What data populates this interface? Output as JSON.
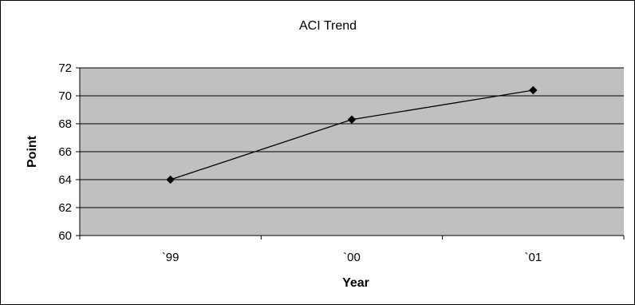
{
  "chart_data": {
    "type": "line",
    "title": "ACI Trend",
    "xlabel": "Year",
    "ylabel": "Point",
    "categories": [
      "`99",
      "`00",
      "`01"
    ],
    "series": [
      {
        "values": [
          64.0,
          68.3,
          70.4
        ]
      }
    ],
    "ylim": [
      60,
      72
    ],
    "yticks": [
      60,
      62,
      64,
      66,
      68,
      70,
      72
    ],
    "grid": true,
    "legend": "none",
    "colors": {
      "plot_background": "#c0c0c0",
      "gridline": "#000000",
      "line": "#000000",
      "marker": "#000000"
    }
  }
}
